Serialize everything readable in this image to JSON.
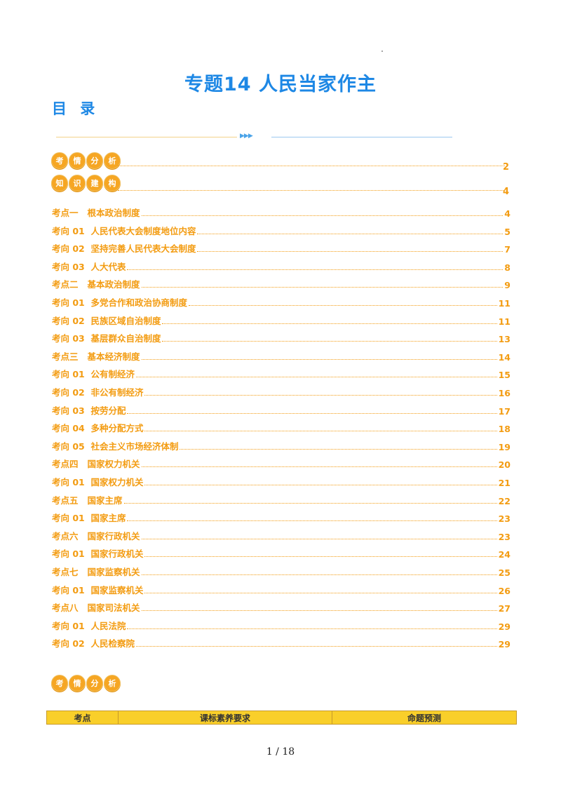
{
  "title": "专题14  人民当家作主",
  "toc_heading": "目 录",
  "badges": {
    "analysis": [
      "考",
      "情",
      "分",
      "析"
    ],
    "analysis_page": "2",
    "framework": [
      "知",
      "识",
      "建",
      "构"
    ],
    "framework_page": "4",
    "bottom": [
      "考",
      "情",
      "分",
      "析"
    ]
  },
  "toc_entries": [
    {
      "label": "考点一   根本政治制度",
      "page": "4"
    },
    {
      "label": "考向 01  人民代表大会制度地位内容",
      "page": "5"
    },
    {
      "label": "考向 02  坚持完善人民代表大会制度",
      "page": "7"
    },
    {
      "label": "考向 03  人大代表",
      "page": "8"
    },
    {
      "label": "考点二   基本政治制度",
      "page": "9"
    },
    {
      "label": "考向 01  多党合作和政治协商制度",
      "page": "11"
    },
    {
      "label": "考向 02  民族区域自治制度",
      "page": "11"
    },
    {
      "label": "考向 03  基层群众自治制度",
      "page": "13"
    },
    {
      "label": "考点三   基本经济制度",
      "page": "14"
    },
    {
      "label": "考向 01  公有制经济",
      "page": "15"
    },
    {
      "label": "考向 02  非公有制经济",
      "page": "16"
    },
    {
      "label": "考向 03  按劳分配",
      "page": "17"
    },
    {
      "label": "考向 04  多种分配方式",
      "page": "18"
    },
    {
      "label": "考向 05  社会主义市场经济体制",
      "page": "19"
    },
    {
      "label": "考点四   国家权力机关",
      "page": "20"
    },
    {
      "label": "考向 01  国家权力机关",
      "page": "21"
    },
    {
      "label": "考点五   国家主席",
      "page": "22"
    },
    {
      "label": "考向 01  国家主席",
      "page": "23"
    },
    {
      "label": "考点六   国家行政机关",
      "page": "23"
    },
    {
      "label": "考向 01  国家行政机关",
      "page": "24"
    },
    {
      "label": "考点七   国家监察机关",
      "page": "25"
    },
    {
      "label": "考向 01  国家监察机关",
      "page": "26"
    },
    {
      "label": "考点八   国家司法机关",
      "page": "27"
    },
    {
      "label": "考向 01  人民法院",
      "page": "29"
    },
    {
      "label": "考向 02  人民检察院",
      "page": "29"
    }
  ],
  "table_headers": [
    "考点",
    "课标素养要求",
    "命题预测"
  ],
  "footer": "1  /  18",
  "colors": {
    "title": "#1e88e5",
    "toc": "#f39c12",
    "badge": "#f6a623",
    "table_header": "#f9cf2a"
  }
}
